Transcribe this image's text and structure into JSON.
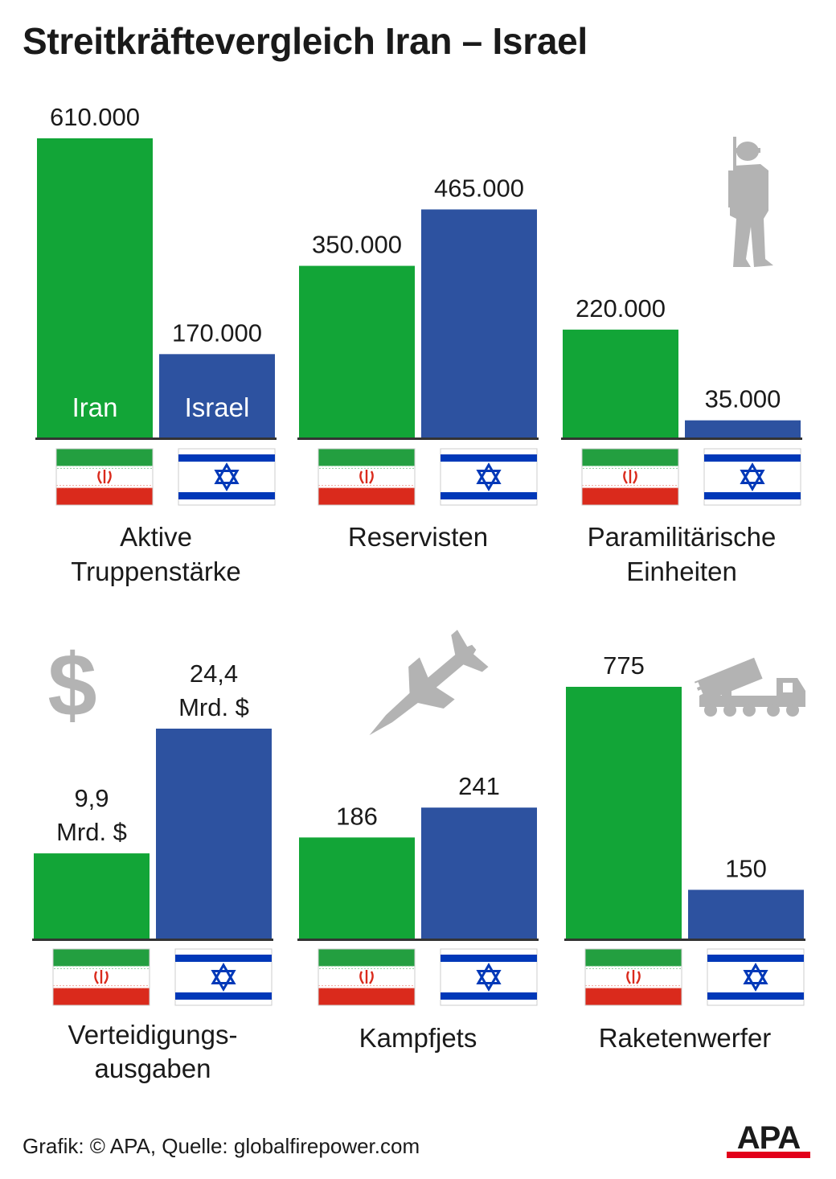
{
  "title": "Streitkräftevergleich Iran – Israel",
  "footer": "Grafik: © APA, Quelle: globalfirepower.com",
  "logo_text": "APA",
  "colors": {
    "iran": "#12a537",
    "israel": "#2d52a0",
    "axis": "#333333",
    "icon": "#b3b3b3",
    "logo": "#1a1a1a",
    "logo_accent": "#e2001a"
  },
  "flags": {
    "iran": {
      "name": "Iran",
      "colors": [
        "#239f40",
        "#ffffff",
        "#da2a1c"
      ],
      "emblem_color": "#da2a1c"
    },
    "israel": {
      "name": "Israel",
      "colors": [
        "#ffffff",
        "#0038b8"
      ]
    }
  },
  "icons": [
    "soldier-icon",
    "dollar-icon",
    "fighter-jet-icon",
    "rocket-launcher-icon"
  ],
  "chart_data": [
    {
      "type": "bar",
      "categories": [
        "Iran",
        "Israel"
      ],
      "values": [
        610000,
        170000
      ],
      "value_labels": [
        "610.000",
        "170.000"
      ],
      "bar_labels": [
        "Iran",
        "Israel"
      ],
      "label": [
        "Aktive",
        "Truppenstärke"
      ]
    },
    {
      "type": "bar",
      "categories": [
        "Iran",
        "Israel"
      ],
      "values": [
        350000,
        465000
      ],
      "value_labels": [
        "350.000",
        "465.000"
      ],
      "label": [
        "Reservisten"
      ],
      "icon": "soldier-icon"
    },
    {
      "type": "bar",
      "categories": [
        "Iran",
        "Israel"
      ],
      "values": [
        220000,
        35000
      ],
      "value_labels": [
        "220.000",
        "35.000"
      ],
      "label": [
        "Paramilitärische",
        "Einheiten"
      ]
    },
    {
      "type": "bar",
      "categories": [
        "Iran",
        "Israel"
      ],
      "values": [
        9.9,
        24.4
      ],
      "unit": "Mrd. $",
      "value_labels": [
        [
          "9,9",
          "Mrd. $"
        ],
        [
          "24,4",
          "Mrd. $"
        ]
      ],
      "label": [
        "Verteidigungs-",
        "ausgaben"
      ],
      "icon": "dollar-icon"
    },
    {
      "type": "bar",
      "categories": [
        "Iran",
        "Israel"
      ],
      "values": [
        186,
        241
      ],
      "value_labels": [
        "186",
        "241"
      ],
      "label": [
        "Kampfjets"
      ],
      "icon": "fighter-jet-icon"
    },
    {
      "type": "bar",
      "categories": [
        "Iran",
        "Israel"
      ],
      "values": [
        775,
        150
      ],
      "value_labels": [
        "775",
        "150"
      ],
      "label": [
        "Raketenwerfer"
      ],
      "icon": "rocket-launcher-icon"
    }
  ]
}
